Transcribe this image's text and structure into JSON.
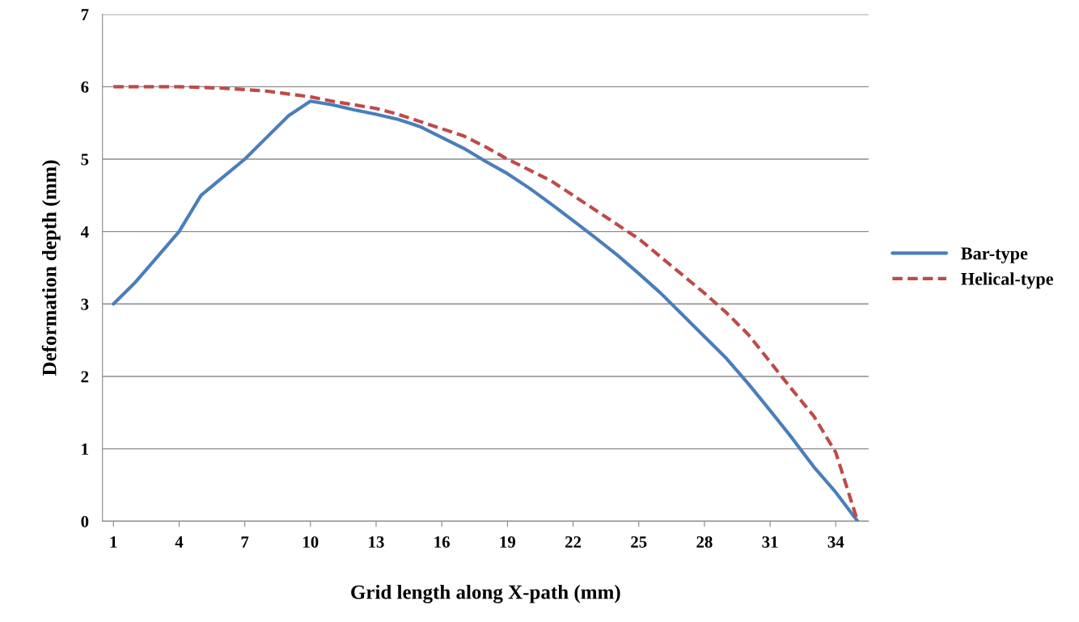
{
  "chart_data": {
    "type": "line",
    "xlabel": "Grid length along X-path (mm)",
    "ylabel": "Deformation depth (mm)",
    "categories": [
      "1",
      null,
      null,
      "4",
      null,
      null,
      "7",
      null,
      null,
      "10",
      null,
      null,
      "13",
      null,
      null,
      "16",
      null,
      null,
      "19",
      null,
      null,
      "22",
      null,
      null,
      "25",
      null,
      null,
      "28",
      null,
      null,
      "31",
      null,
      null,
      "34",
      null
    ],
    "series": [
      {
        "name": "Bar-type",
        "color": "#4a7ebb",
        "line_style": "solid",
        "values": [
          3.0,
          3.3,
          3.65,
          4.0,
          4.5,
          4.75,
          5.0,
          5.3,
          5.6,
          5.8,
          5.75,
          5.68,
          5.62,
          5.55,
          5.45,
          5.3,
          5.15,
          4.97,
          4.8,
          4.6,
          4.38,
          4.15,
          3.92,
          3.68,
          3.42,
          3.15,
          2.85,
          2.55,
          2.25,
          1.9,
          1.53,
          1.15,
          0.75,
          0.4,
          0.0
        ]
      },
      {
        "name": "Helical-type",
        "color": "#be4b48",
        "line_style": "dashed",
        "values": [
          6.0,
          6.0,
          6.0,
          6.0,
          5.99,
          5.98,
          5.96,
          5.94,
          5.9,
          5.86,
          5.8,
          5.75,
          5.7,
          5.62,
          5.52,
          5.42,
          5.32,
          5.17,
          5.0,
          4.85,
          4.7,
          4.5,
          4.3,
          4.1,
          3.9,
          3.65,
          3.4,
          3.15,
          2.88,
          2.58,
          2.2,
          1.82,
          1.45,
          0.95,
          0.0
        ]
      }
    ],
    "ylim": [
      0,
      7
    ],
    "yticks": [
      0,
      1,
      2,
      3,
      4,
      5,
      6,
      7
    ],
    "grid": "y",
    "legend": "right",
    "marker": "none"
  }
}
